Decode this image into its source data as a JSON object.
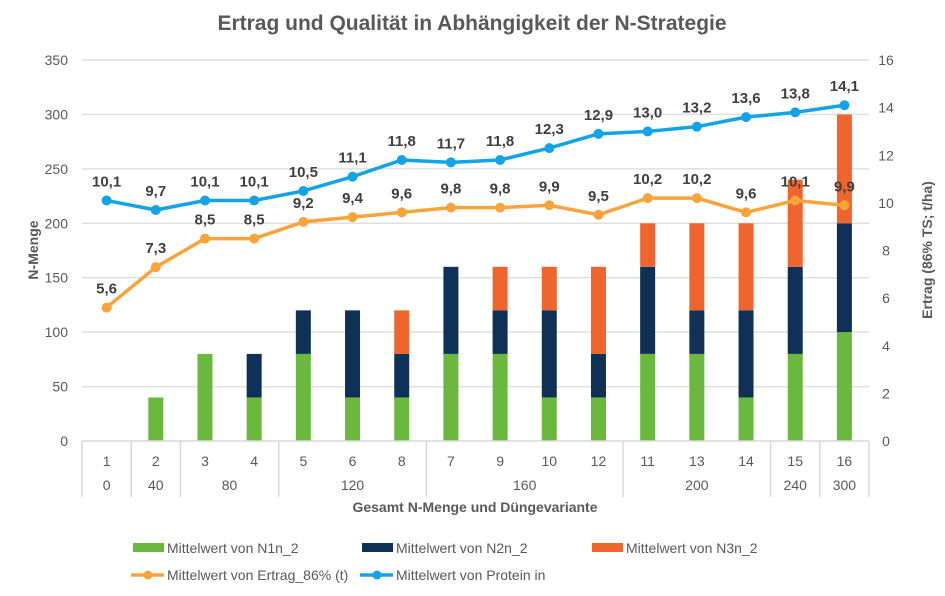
{
  "chart_data": {
    "type": "bar",
    "title": "Ertrag und Qualität in Abhängigkeit der N-Strategie",
    "xlabel": "Gesamt N-Menge und Düngevariante",
    "ylabel": "N-Menge",
    "y2label": "Ertrag (86% TS; t/ha)",
    "ylim": [
      0,
      350
    ],
    "yticks": [
      "0",
      "50",
      "100",
      "150",
      "200",
      "250",
      "300",
      "350"
    ],
    "y2lim": [
      0,
      16
    ],
    "y2ticks": [
      "0",
      "2",
      "4",
      "6",
      "8",
      "10",
      "12",
      "14",
      "16"
    ],
    "grid": true,
    "legend_position": "bottom",
    "categories": [
      "1",
      "2",
      "3",
      "4",
      "5",
      "6",
      "8",
      "7",
      "9",
      "10",
      "12",
      "11",
      "13",
      "14",
      "15",
      "16"
    ],
    "groups": [
      {
        "label": "0",
        "count": 1
      },
      {
        "label": "40",
        "count": 1
      },
      {
        "label": "80",
        "count": 2
      },
      {
        "label": "120",
        "count": 3
      },
      {
        "label": "160",
        "count": 4
      },
      {
        "label": "200",
        "count": 3
      },
      {
        "label": "240",
        "count": 1
      },
      {
        "label": "300",
        "count": 1
      }
    ],
    "bar_series": [
      {
        "name": "Mittelwert von N1n_2",
        "color": "#6ab93e",
        "values": [
          0,
          40,
          80,
          40,
          80,
          40,
          40,
          80,
          80,
          40,
          40,
          80,
          80,
          40,
          80,
          100
        ]
      },
      {
        "name": "Mittelwert von N2n_2",
        "color": "#0f3156",
        "values": [
          0,
          0,
          0,
          40,
          40,
          80,
          40,
          80,
          40,
          80,
          40,
          80,
          40,
          80,
          80,
          100
        ]
      },
      {
        "name": "Mittelwert von N3n_2",
        "color": "#f0652d",
        "values": [
          0,
          0,
          0,
          0,
          0,
          0,
          40,
          0,
          40,
          40,
          80,
          40,
          80,
          80,
          80,
          100
        ]
      }
    ],
    "line_series": [
      {
        "name": "Mittelwert von Ertrag_86% (t)",
        "color": "#f9a43a",
        "axis": "secondary",
        "values": [
          5.6,
          7.3,
          8.5,
          8.5,
          9.2,
          9.4,
          9.6,
          9.8,
          9.8,
          9.9,
          9.5,
          10.2,
          10.2,
          9.6,
          10.1,
          9.9
        ],
        "labels": [
          "5,6",
          "7,3",
          "8,5",
          "8,5",
          "9,2",
          "9,4",
          "9,6",
          "9,8",
          "9,8",
          "9,9",
          "9,5",
          "10,2",
          "10,2",
          "9,6",
          "10,1",
          "9,9"
        ]
      },
      {
        "name": "Mittelwert von Protein in",
        "color": "#13a3e8",
        "axis": "secondary",
        "values": [
          10.1,
          9.7,
          10.1,
          10.1,
          10.5,
          11.1,
          11.8,
          11.7,
          11.8,
          12.3,
          12.9,
          13.0,
          13.2,
          13.6,
          13.8,
          14.1
        ],
        "labels": [
          "10,1",
          "9,7",
          "10,1",
          "10,1",
          "10,5",
          "11,1",
          "11,8",
          "11,7",
          "11,8",
          "12,3",
          "12,9",
          "13,0",
          "13,2",
          "13,6",
          "13,8",
          "14,1"
        ]
      }
    ],
    "legend": [
      {
        "label": "Mittelwert von N1n_2",
        "kind": "bar",
        "color": "#6ab93e"
      },
      {
        "label": "Mittelwert von N2n_2",
        "kind": "bar",
        "color": "#0f3156"
      },
      {
        "label": "Mittelwert von N3n_2",
        "kind": "bar",
        "color": "#f0652d"
      },
      {
        "label": "Mittelwert von Ertrag_86% (t)",
        "kind": "line",
        "color": "#f9a43a"
      },
      {
        "label": "Mittelwert von Protein in",
        "kind": "line",
        "color": "#13a3e8"
      }
    ]
  }
}
